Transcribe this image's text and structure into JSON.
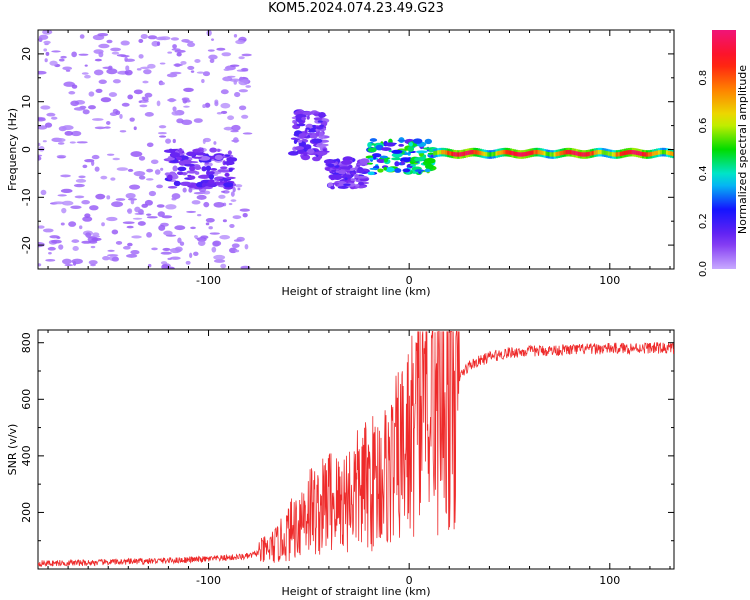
{
  "figure": {
    "title": "KOM5.2024.074.23.49.G23"
  },
  "colors": {
    "snr_line": "#ee2a2a",
    "axis": "#000000"
  },
  "chart_data": [
    {
      "type": "heatmap",
      "title": "KOM5.2024.074.23.49.G23",
      "xlabel": "Height of straight line (km)",
      "ylabel": "Frequency (Hz)",
      "xlim": [
        -185,
        132
      ],
      "ylim": [
        -25,
        25
      ],
      "x_ticks": [
        -100,
        0,
        100
      ],
      "y_ticks": [
        -20,
        -10,
        0,
        10,
        20
      ],
      "colormap": "rainbow (violet → blue → cyan → green → yellow → red → magenta)",
      "colorbar": {
        "label": "Normalized spectral amplitude",
        "range": [
          0,
          1
        ],
        "ticks": [
          0.0,
          0.2,
          0.4,
          0.6,
          0.8
        ]
      },
      "features": [
        {
          "description": "scattered low-amplitude noise patches",
          "x_range": [
            -185,
            -80
          ],
          "y_range": [
            -25,
            25
          ],
          "amplitude": 0.05
        },
        {
          "description": "cluster near -4 Hz",
          "x_range": [
            -120,
            -88
          ],
          "y_range": [
            -8,
            0
          ],
          "amplitude": 0.12
        },
        {
          "description": "rising streak",
          "x_range": [
            -58,
            -42
          ],
          "y_range": [
            -2,
            8
          ],
          "amplitude": 0.12
        },
        {
          "description": "cluster",
          "x_range": [
            -40,
            -22
          ],
          "y_range": [
            -8,
            -2
          ],
          "amplitude": 0.12
        },
        {
          "description": "signal onset",
          "x_range": [
            -20,
            12
          ],
          "y_range": [
            -5,
            2
          ],
          "amplitude": 0.35
        },
        {
          "description": "steady carrier line",
          "x_range": [
            12,
            132
          ],
          "y_range": [
            -1.5,
            0.5
          ],
          "amplitude": 0.8
        }
      ]
    },
    {
      "type": "line",
      "xlabel": "Height of straight line (km)",
      "ylabel": "SNR (v/v)",
      "xlim": [
        -185,
        132
      ],
      "ylim": [
        0,
        845
      ],
      "x_ticks": [
        -100,
        0,
        100
      ],
      "y_ticks": [
        200,
        400,
        600,
        800
      ],
      "series": [
        {
          "x": [
            -185,
            -160,
            -140,
            -120,
            -100,
            -90,
            -80,
            -70,
            -65,
            -60,
            -55,
            -50,
            -45,
            -40,
            -35,
            -30,
            -25,
            -20,
            -15,
            -10,
            -5,
            0,
            5,
            8,
            10,
            12,
            15,
            20,
            25,
            30,
            40,
            50,
            60,
            80,
            100,
            120,
            132
          ],
          "y": [
            20,
            22,
            26,
            30,
            35,
            40,
            45,
            70,
            90,
            130,
            170,
            220,
            200,
            250,
            230,
            260,
            280,
            300,
            320,
            340,
            400,
            450,
            550,
            700,
            640,
            600,
            580,
            620,
            680,
            720,
            750,
            765,
            770,
            775,
            780,
            782,
            780
          ],
          "y_peak_max": 840
        }
      ]
    }
  ]
}
